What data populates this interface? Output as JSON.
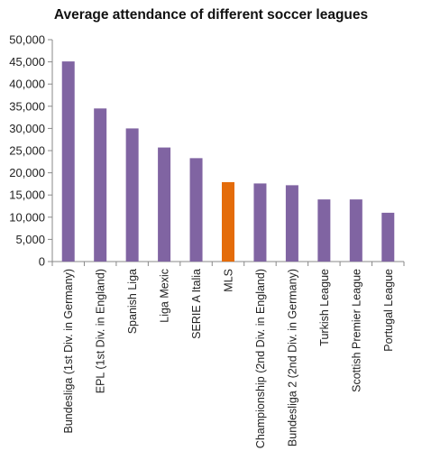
{
  "chart_data": {
    "type": "bar",
    "title": "Average attendance of different soccer leagues",
    "xlabel": "",
    "ylabel": "",
    "ylim": [
      0,
      50000
    ],
    "y_ticks": [
      0,
      5000,
      10000,
      15000,
      20000,
      25000,
      30000,
      35000,
      40000,
      45000,
      50000
    ],
    "y_tick_labels": [
      "0",
      "5,000",
      "10,000",
      "15,000",
      "20,000",
      "25,000",
      "30,000",
      "35,000",
      "40,000",
      "45,000",
      "50,000"
    ],
    "grid": false,
    "legend": "none",
    "categories": [
      "Bundesliga (1st Div. in Germany)",
      "EPL (1st Div. in England)",
      "Spanish Liga",
      "Liga Mexic",
      "SERIE A Italia",
      "MLS",
      "Championship (2nd Div. in England)",
      "Bundesliga 2 (2nd Div. in Germany)",
      "Turkish League",
      "Scottish Premier League",
      "Portugal League"
    ],
    "values": [
      45100,
      34500,
      30000,
      25700,
      23300,
      17900,
      17600,
      17200,
      14000,
      14000,
      11000
    ],
    "colors": {
      "default": "#8064A2",
      "highlight": "#E46C0A",
      "highlight_category": "MLS"
    }
  }
}
